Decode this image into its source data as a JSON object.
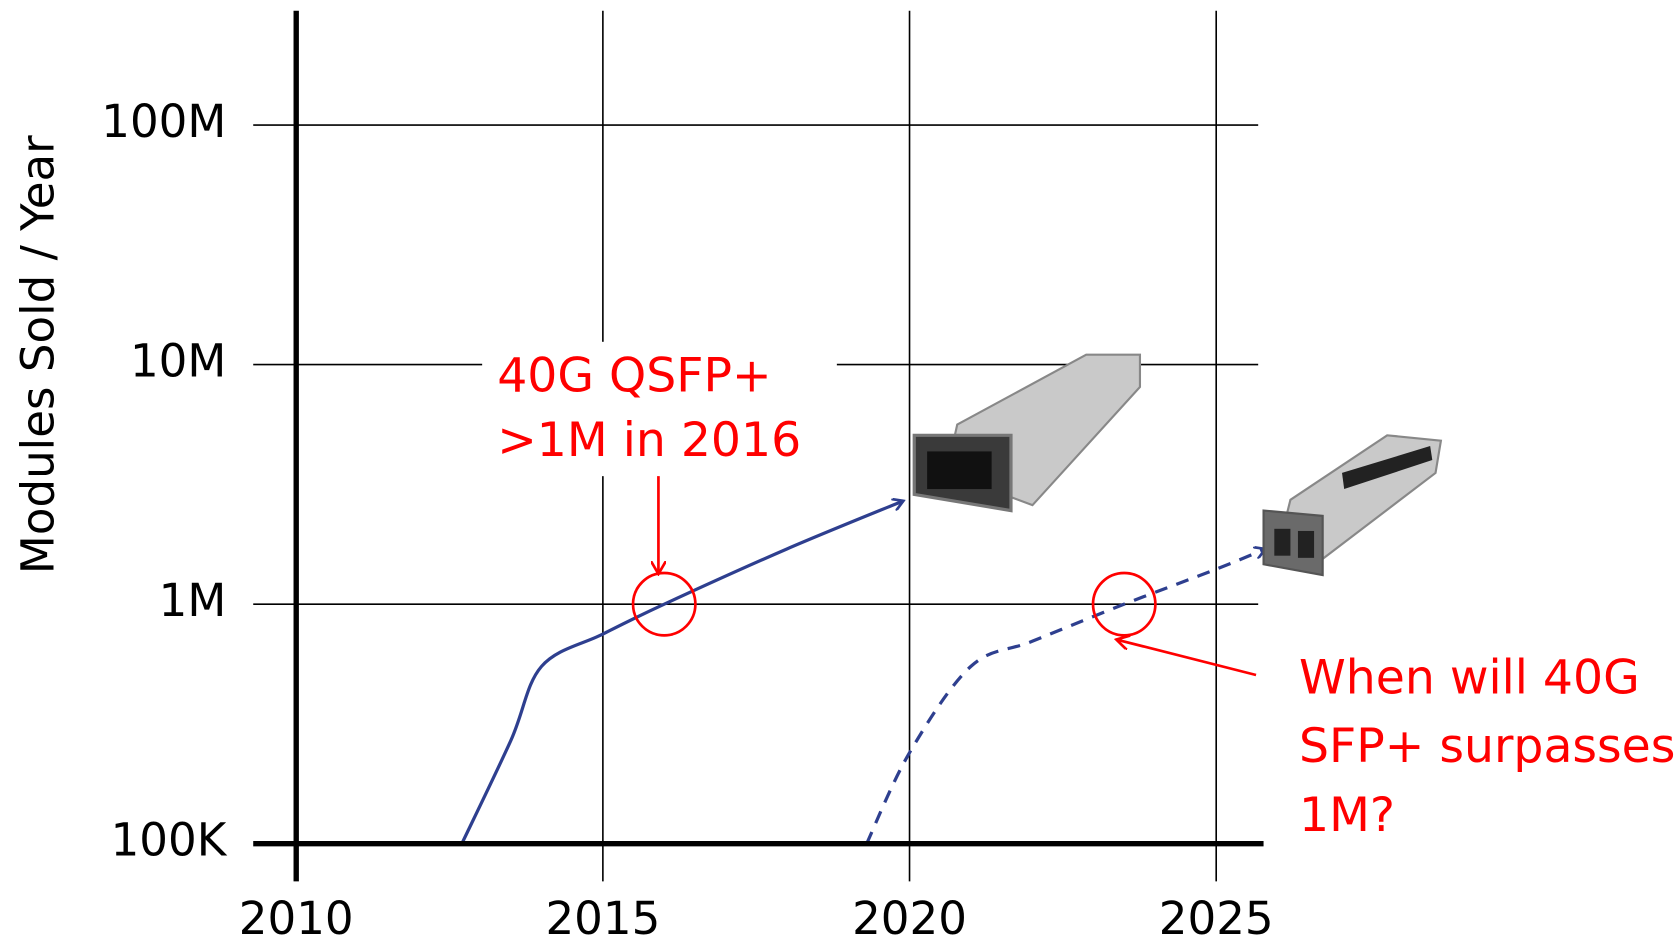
{
  "chart_data": {
    "type": "line",
    "y_label": "Modules Sold / Year",
    "xlim": [
      2010,
      2026
    ],
    "xticks": [
      2010,
      2015,
      2020,
      2025
    ],
    "ylim": [
      100000,
      300000000
    ],
    "yscale": "log",
    "yticks": [
      {
        "value": 100000,
        "label": "100K"
      },
      {
        "value": 1000000,
        "label": "1M"
      },
      {
        "value": 10000000,
        "label": "10M"
      },
      {
        "value": 100000000,
        "label": "100M"
      }
    ],
    "grid": true,
    "series": [
      {
        "name": "40G QSFP+",
        "color": "#2e3f8f",
        "dash": false,
        "x": [
          2012.7,
          2013.5,
          2014,
          2015,
          2016,
          2018,
          2019.9
        ],
        "values": [
          100000,
          270000,
          550000,
          750000,
          1000000,
          1700000,
          2700000
        ]
      },
      {
        "name": "40G SFP+",
        "color": "#2e3f8f",
        "dash": true,
        "x": [
          2019.3,
          2020,
          2021,
          2022,
          2023.5,
          2025,
          2025.8
        ],
        "values": [
          100000,
          240000,
          550000,
          700000,
          1000000,
          1400000,
          1700000
        ]
      }
    ],
    "circles": [
      {
        "x": 2016,
        "y": 1000000
      },
      {
        "x": 2023.5,
        "y": 1000000
      }
    ],
    "annotations": [
      {
        "lines": [
          "40G QSFP+",
          ">1M in 2016"
        ]
      },
      {
        "lines": [
          "When will 40G",
          "SFP+ surpasses",
          "1M?"
        ]
      }
    ]
  }
}
